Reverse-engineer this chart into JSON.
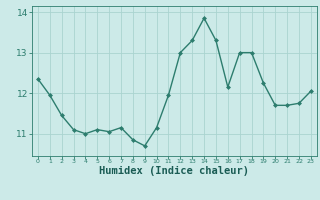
{
  "x": [
    0,
    1,
    2,
    3,
    4,
    5,
    6,
    7,
    8,
    9,
    10,
    11,
    12,
    13,
    14,
    15,
    16,
    17,
    18,
    19,
    20,
    21,
    22,
    23
  ],
  "y": [
    12.35,
    11.95,
    11.45,
    11.1,
    11.0,
    11.1,
    11.05,
    11.15,
    10.85,
    10.7,
    11.15,
    11.95,
    13.0,
    13.3,
    13.85,
    13.3,
    12.15,
    13.0,
    13.0,
    12.25,
    11.7,
    11.7,
    11.75,
    12.05
  ],
  "line_color": "#2d7d6e",
  "marker": "D",
  "marker_size": 2.0,
  "bg_color": "#cceae8",
  "grid_color": "#aad4d0",
  "tick_color": "#2d7d6e",
  "xlabel": "Humidex (Indice chaleur)",
  "xlabel_fontsize": 7.5,
  "xlabel_color": "#1a5c54",
  "yticks": [
    11,
    12,
    13,
    14
  ],
  "xticks": [
    0,
    1,
    2,
    3,
    4,
    5,
    6,
    7,
    8,
    9,
    10,
    11,
    12,
    13,
    14,
    15,
    16,
    17,
    18,
    19,
    20,
    21,
    22,
    23
  ],
  "ylim": [
    10.45,
    14.15
  ],
  "xlim": [
    -0.5,
    23.5
  ],
  "linewidth": 1.0
}
